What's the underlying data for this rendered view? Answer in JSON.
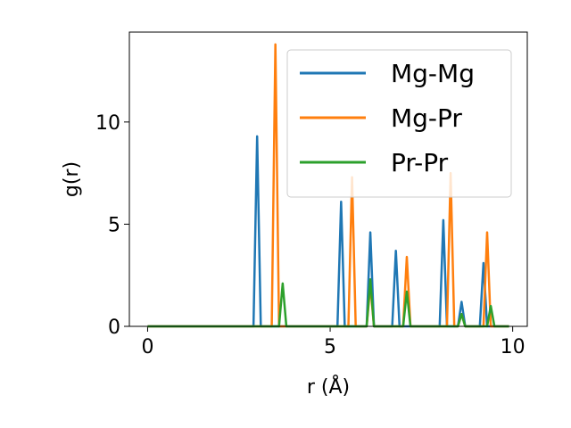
{
  "chart_data": {
    "type": "line",
    "title": "",
    "xlabel": "r (Å)",
    "ylabel": "g(r)",
    "xlim": [
      -0.5,
      10.4
    ],
    "ylim": [
      0,
      14.4
    ],
    "xticks": [
      0,
      5,
      10
    ],
    "yticks": [
      0,
      5,
      10
    ],
    "grid": false,
    "legend_position": "top-right",
    "colors": [
      "#1f77b4",
      "#ff7f0e",
      "#2ca02c"
    ],
    "series": [
      {
        "name": "Mg-Mg",
        "color": "#1f77b4",
        "x": [
          0,
          2.9,
          3.0,
          3.1,
          5.2,
          5.3,
          5.4,
          6.0,
          6.1,
          6.2,
          6.7,
          6.8,
          6.9,
          8.0,
          8.1,
          8.2,
          8.5,
          8.6,
          8.7,
          9.1,
          9.2,
          9.3,
          9.9
        ],
        "y": [
          0,
          0,
          9.3,
          0,
          0,
          6.1,
          0,
          0,
          4.6,
          0,
          0,
          3.7,
          0,
          0,
          5.2,
          0,
          0,
          1.2,
          0,
          0,
          3.1,
          0,
          0
        ]
      },
      {
        "name": "Mg-Pr",
        "color": "#ff7f0e",
        "x": [
          0,
          3.4,
          3.5,
          3.6,
          5.5,
          5.6,
          5.7,
          6.0,
          6.1,
          6.2,
          7.0,
          7.1,
          7.2,
          8.2,
          8.3,
          8.4,
          8.5,
          8.6,
          8.7,
          9.2,
          9.3,
          9.4,
          9.9
        ],
        "y": [
          0,
          0,
          13.8,
          0,
          0,
          7.3,
          0,
          0,
          2.0,
          0,
          0,
          3.4,
          0,
          0,
          7.5,
          0,
          0,
          0.6,
          0,
          0,
          4.6,
          0,
          0
        ]
      },
      {
        "name": "Pr-Pr",
        "color": "#2ca02c",
        "x": [
          0,
          3.6,
          3.7,
          3.8,
          6.0,
          6.1,
          6.2,
          7.0,
          7.1,
          7.2,
          8.5,
          8.6,
          8.7,
          9.3,
          9.4,
          9.5,
          9.9
        ],
        "y": [
          0,
          0,
          2.1,
          0,
          0,
          2.3,
          0,
          0,
          1.7,
          0,
          0,
          0.6,
          0,
          0,
          1.0,
          0,
          0
        ]
      }
    ]
  }
}
